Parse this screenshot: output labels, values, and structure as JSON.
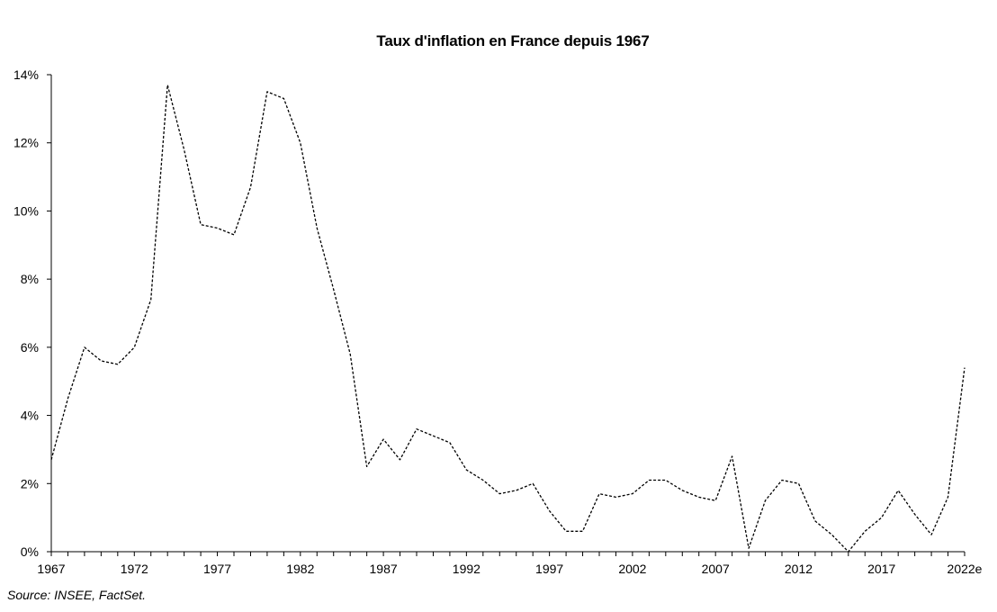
{
  "chart_data": {
    "type": "line",
    "title": "Taux d'inflation en France depuis 1967",
    "source": "Source: INSEE, FactSet.",
    "xlabel": "",
    "ylabel": "",
    "x_tick_labels": [
      "1967",
      "1972",
      "1977",
      "1982",
      "1987",
      "1992",
      "1997",
      "2002",
      "2007",
      "2012",
      "2017",
      "2022e"
    ],
    "y_tick_labels": [
      "0%",
      "2%",
      "4%",
      "6%",
      "8%",
      "10%",
      "12%",
      "14%"
    ],
    "ylim": [
      0,
      14
    ],
    "grid": false,
    "legend": "none",
    "line_style": "dashed",
    "line_color": "#000000",
    "series": [
      {
        "x": [
          1967,
          1968,
          1969,
          1970,
          1971,
          1972,
          1973,
          1974,
          1975,
          1976,
          1977,
          1978,
          1979,
          1980,
          1981,
          1982,
          1983,
          1984,
          1985,
          1986,
          1987,
          1988,
          1989,
          1990,
          1991,
          1992,
          1993,
          1994,
          1995,
          1996,
          1997,
          1998,
          1999,
          2000,
          2001,
          2002,
          2003,
          2004,
          2005,
          2006,
          2007,
          2008,
          2009,
          2010,
          2011,
          2012,
          2013,
          2014,
          2015,
          2016,
          2017,
          2018,
          2019,
          2020,
          2021,
          2022
        ],
        "values": [
          2.7,
          4.5,
          6.0,
          5.6,
          5.5,
          6.0,
          7.4,
          13.7,
          11.8,
          9.6,
          9.5,
          9.3,
          10.7,
          13.5,
          13.3,
          12.0,
          9.5,
          7.7,
          5.8,
          2.5,
          3.3,
          2.7,
          3.6,
          3.4,
          3.2,
          2.4,
          2.1,
          1.7,
          1.8,
          2.0,
          1.2,
          0.6,
          0.6,
          1.7,
          1.6,
          1.7,
          2.1,
          2.1,
          1.8,
          1.6,
          1.5,
          2.8,
          0.1,
          1.5,
          2.1,
          2.0,
          0.9,
          0.5,
          0.0,
          0.6,
          1.0,
          1.8,
          1.1,
          0.5,
          1.6,
          5.4
        ]
      }
    ]
  }
}
